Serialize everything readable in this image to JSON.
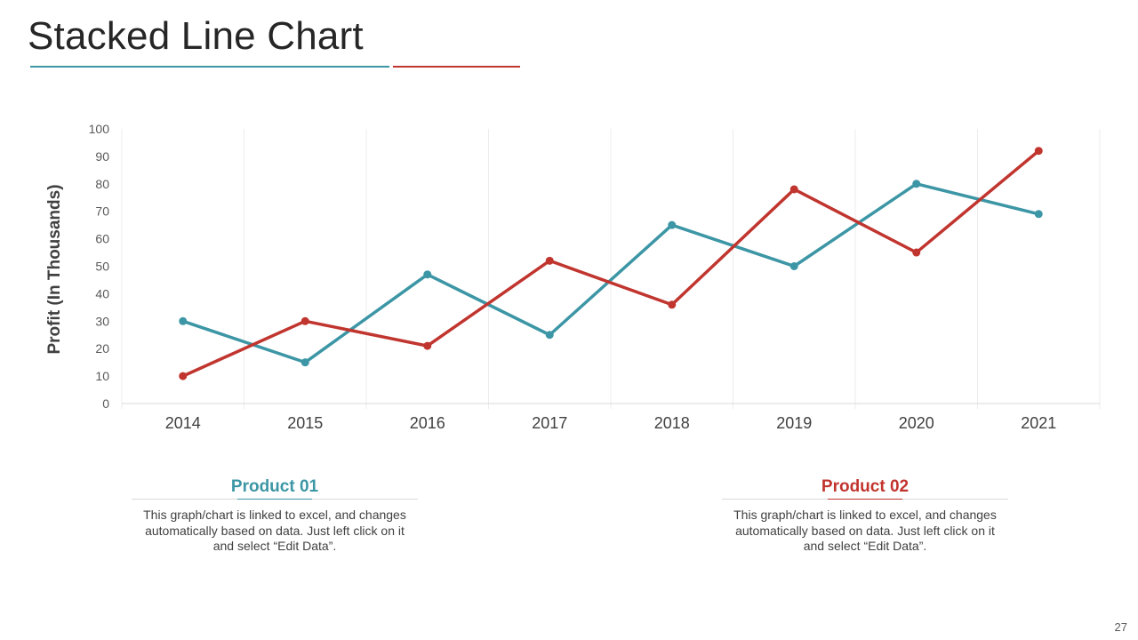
{
  "slide": {
    "title": "Stacked Line Chart",
    "page_number": "27",
    "colors": {
      "teal": "#3c96a5",
      "red": "#c1352f",
      "grid": "#ececec"
    }
  },
  "chart_data": {
    "type": "line",
    "title": "",
    "xlabel": "",
    "ylabel": "Profit (In Thousands)",
    "ylim": [
      0,
      100
    ],
    "yticks": [
      0,
      10,
      20,
      30,
      40,
      50,
      60,
      70,
      80,
      90,
      100
    ],
    "categories": [
      "2014",
      "2015",
      "2016",
      "2017",
      "2018",
      "2019",
      "2020",
      "2021"
    ],
    "series": [
      {
        "name": "Product 01",
        "color": "#3c96a5",
        "values": [
          30,
          15,
          47,
          25,
          65,
          50,
          80,
          69
        ]
      },
      {
        "name": "Product 02",
        "color": "#c1352f",
        "values": [
          10,
          30,
          21,
          52,
          36,
          78,
          55,
          92
        ]
      }
    ],
    "grid": true,
    "legend": "none"
  },
  "products": [
    {
      "title": "Product 01",
      "color": "#3c96a5",
      "description": "This graph/chart is linked to excel, and changes automatically based on data. Just left click on it and select “Edit Data”."
    },
    {
      "title": "Product 02",
      "color": "#c1352f",
      "description": "This graph/chart is linked to excel, and changes automatically based on data. Just left click on it and select “Edit Data”."
    }
  ]
}
